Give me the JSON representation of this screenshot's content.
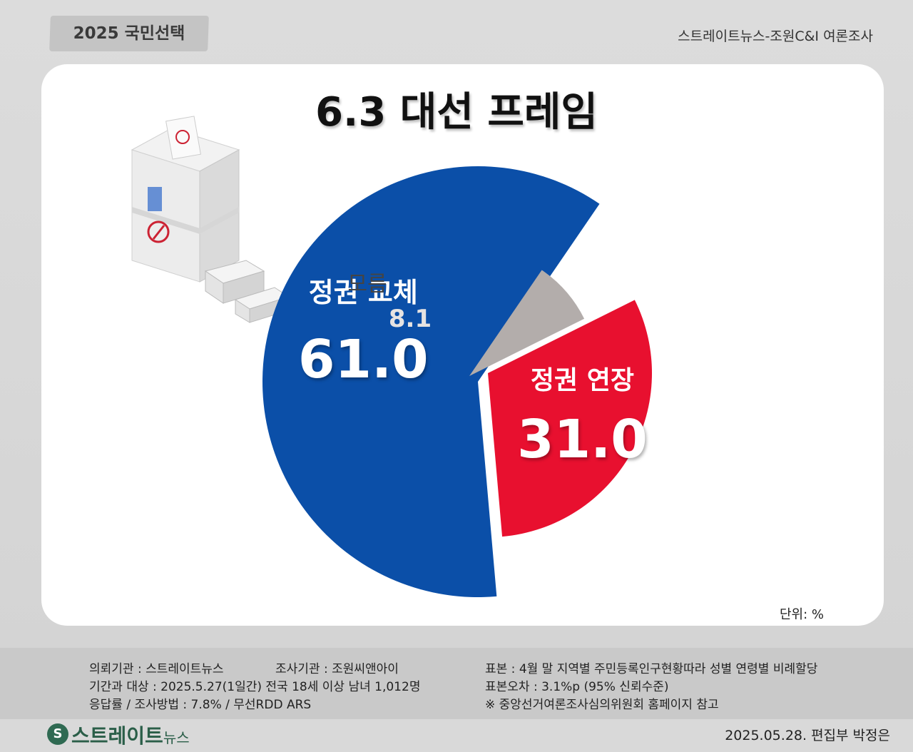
{
  "header": {
    "tag": "2025 국민선택",
    "source": "스트레이트뉴스-조원C&I 여론조사"
  },
  "chart_data": {
    "type": "pie",
    "title": "6.3 대선 프레임",
    "unit_label": "단위: %",
    "slices": [
      {
        "label": "정권 교체",
        "value": 61.0,
        "value_text": "61.0",
        "color": "#0b4fa8"
      },
      {
        "label": "모름",
        "value": 8.1,
        "value_text": "8.1",
        "color": "#b3adab"
      },
      {
        "label": "정권 연장",
        "value": 31.0,
        "value_text": "31.0",
        "color": "#e8102f"
      }
    ]
  },
  "footer": {
    "left_lines": [
      "의뢰기관 : 스트레이트뉴스",
      "기간과 대상 : 2025.5.27(1일간)  전국 18세 이상 남녀 1,012명",
      "응답률 / 조사방법 : 7.8% / 무선RDD ARS"
    ],
    "mid_line": "조사기관 : 조원씨앤아이",
    "right_lines": [
      "표본 : 4월 말 지역별 주민등록인구현황따라 성별 연령별 비례할당",
      "표본오차 : 3.1%p (95% 신뢰수준)",
      "※ 중앙선거여론조사심의위원회 홈페이지 참고"
    ],
    "logo_text": "스트레이트",
    "logo_sub": "뉴스",
    "date_credit": "2025.05.28. 편집부 박정은"
  }
}
